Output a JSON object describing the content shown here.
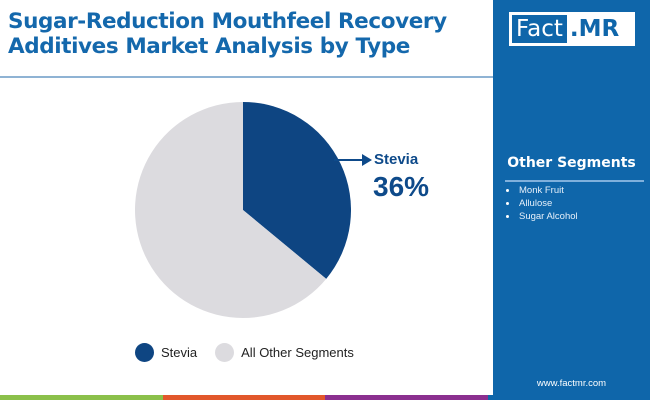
{
  "header": {
    "title_line1": "Sugar-Reduction Mouthfeel Recovery",
    "title_line2": "Additives Market Analysis by Type"
  },
  "brand": {
    "logo_left": "Fact",
    "logo_right": ".MR",
    "website": "www.factmr.com",
    "colors": {
      "primary": "#0f66aa",
      "title": "#1468ac",
      "strip": [
        "#8bc04a",
        "#e2572b",
        "#8b2f8f",
        "#0f66aa"
      ]
    }
  },
  "side_panel": {
    "title": "Other Segments",
    "items": [
      "Monk Fruit",
      "Allulose",
      "Sugar Alcohol"
    ]
  },
  "callout": {
    "label": "Stevia",
    "value": "36%"
  },
  "legend": [
    {
      "label": "Stevia",
      "color": "#0e4582"
    },
    {
      "label": "All Other Segments",
      "color": "#dcdbdf"
    }
  ],
  "chart_data": {
    "type": "pie",
    "title": "Sugar-Reduction Mouthfeel Recovery Additives Market Analysis by Type",
    "categories": [
      "Stevia",
      "All Other Segments"
    ],
    "values": [
      36,
      64
    ],
    "colors": [
      "#0e4582",
      "#dcdbdf"
    ],
    "start_angle_deg": 0,
    "direction": "clockwise",
    "annotations": [
      {
        "category": "Stevia",
        "text": "36%"
      }
    ],
    "legend_position": "bottom"
  }
}
